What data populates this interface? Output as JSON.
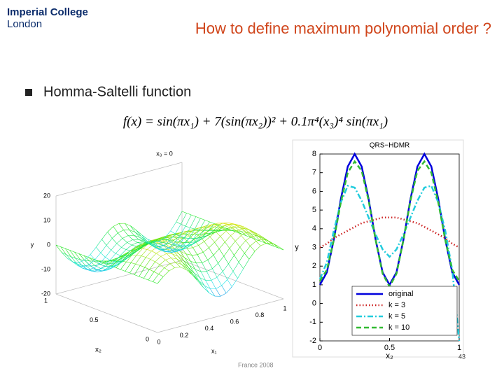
{
  "header": {
    "logo_line1": "Imperial College",
    "logo_line2": "London",
    "title": "How to define maximum polynomial order ?"
  },
  "bullet": "Homma-Saltelli function",
  "formula": "f(x) = sin(πx₁) + 7(sin(πx₂))² + 0.1π⁴(x₃)⁴ sin(πx₁)",
  "surface_plot": {
    "title": "x₃ = 0",
    "zlabel": "y",
    "x1label": "x₁",
    "x2label": "x₂",
    "zticks": [
      20,
      10,
      0,
      -10,
      -20
    ],
    "x1ticks": [
      0,
      0.2,
      0.4,
      0.6,
      0.8,
      1
    ],
    "x2ticks": [
      1,
      0.5,
      0
    ]
  },
  "chart_data": {
    "type": "line",
    "title": "QRS−HDMR",
    "xlabel": "x₂",
    "ylabel": "y",
    "x": [
      0,
      0.05,
      0.1,
      0.15,
      0.2,
      0.25,
      0.3,
      0.35,
      0.4,
      0.45,
      0.5,
      0.55,
      0.6,
      0.65,
      0.7,
      0.75,
      0.8,
      0.85,
      0.9,
      0.95,
      1
    ],
    "series": [
      {
        "name": "original",
        "color": "#0000dd",
        "dash": "solid",
        "values": [
          1,
          1.67,
          3.42,
          5.58,
          7.33,
          8,
          7.33,
          5.58,
          3.42,
          1.67,
          1,
          1.67,
          3.42,
          5.58,
          7.33,
          8,
          7.33,
          5.58,
          3.42,
          1.67,
          1
        ]
      },
      {
        "name": "k = 3",
        "color": "#cc2222",
        "dash": "dotted",
        "values": [
          3,
          3.2,
          3.5,
          3.7,
          3.9,
          4.1,
          4.3,
          4.4,
          4.5,
          4.6,
          4.6,
          4.6,
          4.5,
          4.4,
          4.3,
          4.1,
          3.9,
          3.7,
          3.5,
          3.2,
          3
        ]
      },
      {
        "name": "k = 5",
        "color": "#22ccdd",
        "dash": "dashdot",
        "values": [
          1.3,
          2.2,
          3.9,
          5.4,
          6.3,
          6.2,
          5.5,
          4.6,
          3.7,
          2.9,
          2.5,
          2.9,
          3.7,
          4.6,
          5.5,
          6.2,
          6.3,
          5.4,
          3.9,
          1.8,
          -2
        ]
      },
      {
        "name": "k = 10",
        "color": "#33bb33",
        "dash": "dashed",
        "values": [
          1.2,
          1.8,
          3.4,
          5.4,
          7,
          7.6,
          7.1,
          5.5,
          3.4,
          1.6,
          0.9,
          1.6,
          3.4,
          5.5,
          7.1,
          7.6,
          7,
          5.4,
          3.4,
          1.8,
          1.2
        ]
      }
    ],
    "xlim": [
      0,
      1
    ],
    "ylim": [
      -2,
      8
    ],
    "xticks": [
      0,
      0.5,
      1
    ],
    "yticks": [
      -2,
      -1,
      0,
      1,
      2,
      3,
      4,
      5,
      6,
      7,
      8
    ],
    "legend": "lower right"
  },
  "footer": {
    "event": "France 2008",
    "page": "43"
  }
}
